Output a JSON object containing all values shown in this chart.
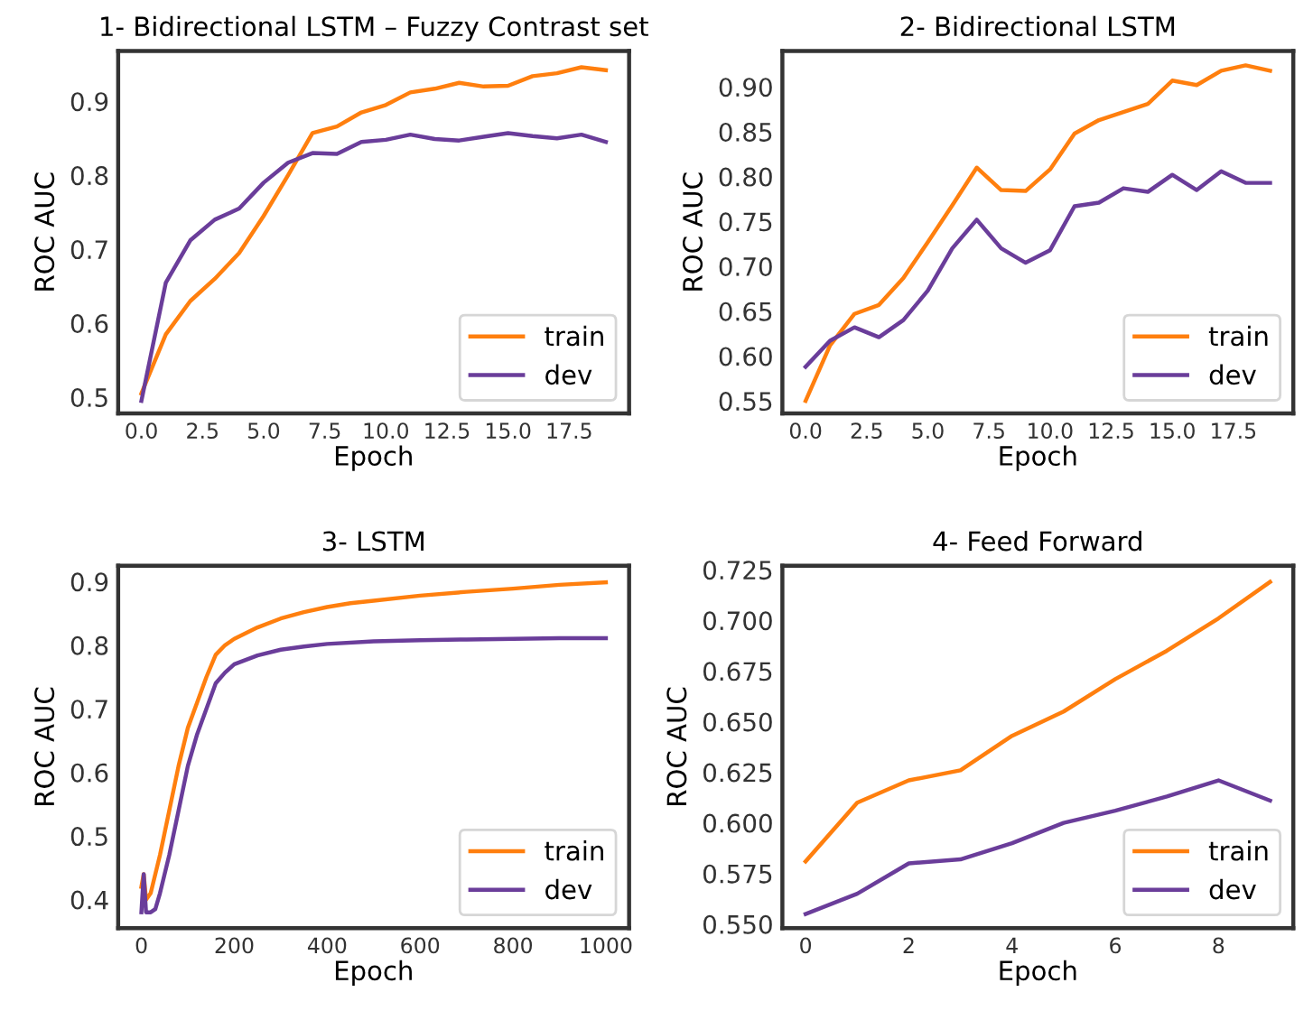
{
  "chart_data": [
    {
      "type": "line",
      "title": "1- Bidirectional LSTM – Fuzzy Contrast set",
      "xlabel": "Epoch",
      "ylabel": "ROC AUC",
      "x": [
        0,
        1,
        2,
        3,
        4,
        5,
        6,
        7,
        8,
        9,
        10,
        11,
        12,
        13,
        14,
        15,
        16,
        17,
        18,
        19
      ],
      "series": [
        {
          "name": "train",
          "color": "#ff7f0e",
          "values": [
            0.505,
            0.585,
            0.63,
            0.66,
            0.695,
            0.745,
            0.8,
            0.857,
            0.866,
            0.885,
            0.895,
            0.912,
            0.917,
            0.925,
            0.92,
            0.921,
            0.934,
            0.938,
            0.946,
            0.942
          ]
        },
        {
          "name": "dev",
          "color": "#6a3d9a",
          "values": [
            0.495,
            0.655,
            0.712,
            0.74,
            0.755,
            0.79,
            0.817,
            0.83,
            0.829,
            0.845,
            0.848,
            0.855,
            0.849,
            0.847,
            0.852,
            0.857,
            0.853,
            0.85,
            0.855,
            0.845
          ]
        }
      ],
      "xlim": [
        -0.95,
        19.95
      ],
      "xticks": [
        {
          "value": 0,
          "label": "0.0"
        },
        2.5,
        {
          "value": 5,
          "label": "5.0"
        },
        7.5,
        {
          "value": 10,
          "label": "10.0"
        },
        12.5,
        {
          "value": 15,
          "label": "15.0"
        },
        17.5
      ],
      "ylim": [
        0.478,
        0.968
      ],
      "yticks": [
        0.5,
        0.6,
        0.7,
        0.8,
        0.9
      ],
      "legend": "lower right",
      "grid": false
    },
    {
      "type": "line",
      "title": "2- Bidirectional LSTM",
      "xlabel": "Epoch",
      "ylabel": "ROC AUC",
      "x": [
        0,
        1,
        2,
        3,
        4,
        5,
        6,
        7,
        8,
        9,
        10,
        11,
        12,
        13,
        14,
        15,
        16,
        17,
        18,
        19
      ],
      "series": [
        {
          "name": "train",
          "color": "#ff7f0e",
          "values": [
            0.55,
            0.612,
            0.647,
            0.657,
            0.687,
            0.727,
            0.768,
            0.81,
            0.785,
            0.784,
            0.808,
            0.848,
            0.863,
            0.872,
            0.881,
            0.907,
            0.902,
            0.918,
            0.924,
            0.918
          ]
        },
        {
          "name": "dev",
          "color": "#6a3d9a",
          "values": [
            0.588,
            0.617,
            0.632,
            0.621,
            0.64,
            0.673,
            0.72,
            0.752,
            0.72,
            0.704,
            0.718,
            0.767,
            0.771,
            0.787,
            0.783,
            0.802,
            0.785,
            0.806,
            0.793,
            0.793
          ]
        }
      ],
      "xlim": [
        -0.95,
        19.95
      ],
      "xticks": [
        {
          "value": 0,
          "label": "0.0"
        },
        2.5,
        {
          "value": 5,
          "label": "5.0"
        },
        7.5,
        {
          "value": 10,
          "label": "10.0"
        },
        12.5,
        {
          "value": 15,
          "label": "15.0"
        },
        17.5
      ],
      "ylim": [
        0.536,
        0.94
      ],
      "yticks": [
        {
          "value": 0.55,
          "label": "0.55"
        },
        {
          "value": 0.6,
          "label": "0.60"
        },
        {
          "value": 0.65,
          "label": "0.65"
        },
        {
          "value": 0.7,
          "label": "0.70"
        },
        {
          "value": 0.75,
          "label": "0.75"
        },
        {
          "value": 0.8,
          "label": "0.80"
        },
        {
          "value": 0.85,
          "label": "0.85"
        },
        {
          "value": 0.9,
          "label": "0.90"
        }
      ],
      "legend": "lower right",
      "grid": false
    },
    {
      "type": "line",
      "title": "3- LSTM",
      "xlabel": "Epoch",
      "ylabel": "ROC AUC",
      "series": [
        {
          "name": "train",
          "color": "#ff7f0e",
          "x": [
            0,
            5,
            10,
            20,
            40,
            60,
            80,
            100,
            120,
            140,
            160,
            180,
            200,
            250,
            300,
            350,
            400,
            450,
            500,
            600,
            700,
            800,
            900,
            1000
          ],
          "values": [
            0.42,
            0.44,
            0.4,
            0.41,
            0.47,
            0.54,
            0.61,
            0.67,
            0.71,
            0.75,
            0.785,
            0.8,
            0.81,
            0.828,
            0.842,
            0.852,
            0.86,
            0.866,
            0.87,
            0.878,
            0.884,
            0.889,
            0.895,
            0.899
          ]
        },
        {
          "name": "dev",
          "color": "#6a3d9a",
          "x": [
            0,
            5,
            10,
            20,
            30,
            40,
            60,
            80,
            100,
            120,
            140,
            160,
            180,
            200,
            250,
            300,
            350,
            400,
            500,
            600,
            700,
            800,
            900,
            1000
          ],
          "values": [
            0.38,
            0.44,
            0.38,
            0.38,
            0.385,
            0.41,
            0.47,
            0.54,
            0.61,
            0.66,
            0.7,
            0.74,
            0.757,
            0.77,
            0.784,
            0.793,
            0.798,
            0.802,
            0.806,
            0.808,
            0.809,
            0.81,
            0.811,
            0.811
          ]
        }
      ],
      "xlim": [
        -50,
        1050
      ],
      "xticks": [
        0,
        200,
        400,
        600,
        800,
        1000
      ],
      "ylim": [
        0.355,
        0.925
      ],
      "yticks": [
        0.4,
        0.5,
        0.6,
        0.7,
        0.8,
        0.9
      ],
      "legend": "lower right",
      "grid": false
    },
    {
      "type": "line",
      "title": "4- Feed Forward",
      "xlabel": "Epoch",
      "ylabel": "ROC AUC",
      "x": [
        0,
        1,
        2,
        3,
        4,
        5,
        6,
        7,
        8,
        9
      ],
      "series": [
        {
          "name": "train",
          "color": "#ff7f0e",
          "values": [
            0.581,
            0.61,
            0.621,
            0.626,
            0.643,
            0.655,
            0.671,
            0.685,
            0.701,
            0.719
          ]
        },
        {
          "name": "dev",
          "color": "#6a3d9a",
          "values": [
            0.555,
            0.565,
            0.58,
            0.582,
            0.59,
            0.6,
            0.606,
            0.613,
            0.621,
            0.611
          ]
        }
      ],
      "xlim": [
        -0.45,
        9.45
      ],
      "xticks": [
        0,
        2,
        4,
        6,
        8
      ],
      "ylim": [
        0.548,
        0.727
      ],
      "yticks": [
        {
          "value": 0.55,
          "label": "0.550"
        },
        {
          "value": 0.575,
          "label": "0.575"
        },
        {
          "value": 0.6,
          "label": "0.600"
        },
        {
          "value": 0.625,
          "label": "0.625"
        },
        {
          "value": 0.65,
          "label": "0.650"
        },
        {
          "value": 0.675,
          "label": "0.675"
        },
        {
          "value": 0.7,
          "label": "0.700"
        },
        {
          "value": 0.725,
          "label": "0.725"
        }
      ],
      "legend": "lower right",
      "grid": false
    }
  ]
}
